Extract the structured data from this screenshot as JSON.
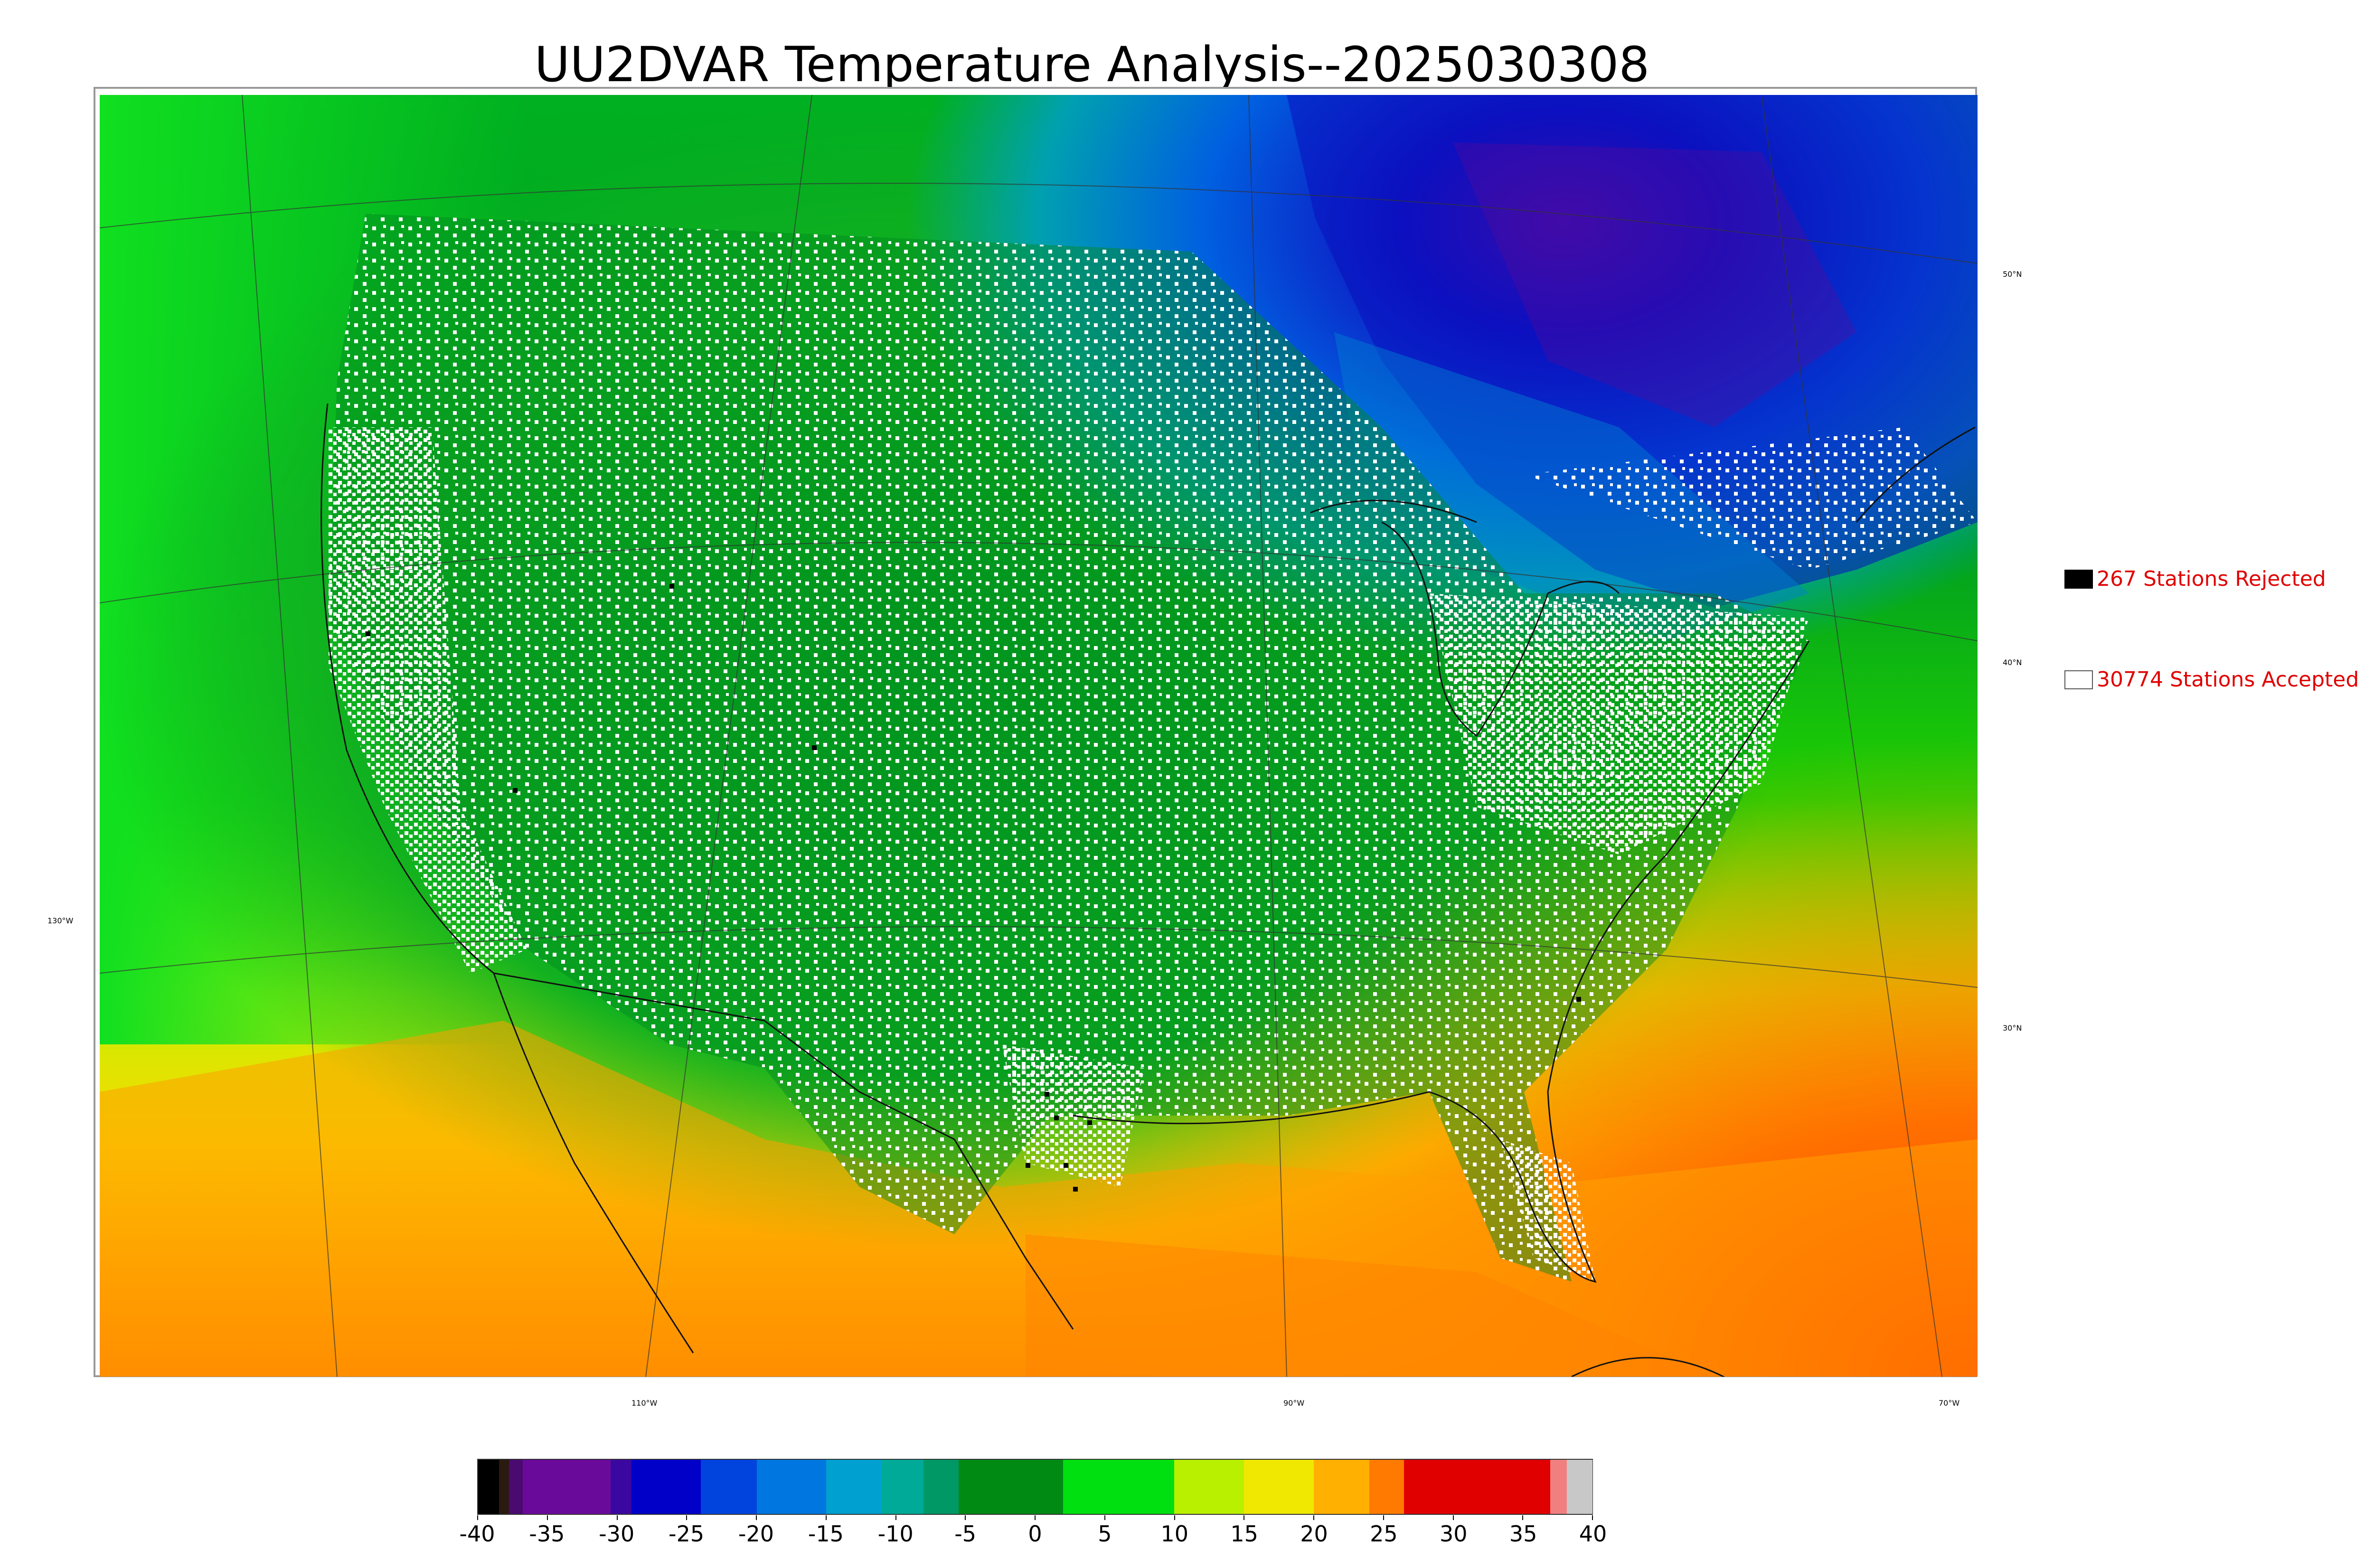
{
  "title": "UU2DVAR Temperature Analysis--2025030308",
  "map": {
    "lat_labels": [
      "50°N",
      "40°N",
      "30°N"
    ],
    "lon_labels": [
      "130°W",
      "110°W",
      "90°W",
      "70°W"
    ]
  },
  "legend": {
    "rejected_label": "267 Stations Rejected",
    "accepted_label": "30774 Stations Accepted"
  },
  "colorbar": {
    "ticks": [
      "-40",
      "-35",
      "-30",
      "-25",
      "-20",
      "-15",
      "-10",
      "-5",
      "0",
      "5",
      "10",
      "15",
      "20",
      "25",
      "30",
      "35",
      "40"
    ],
    "min": -40,
    "max": 40,
    "colors": [
      {
        "from": -40,
        "to": -38.5,
        "color": "#000000"
      },
      {
        "from": -38.5,
        "to": -37.8,
        "color": "#2a1a10"
      },
      {
        "from": -37.8,
        "to": -36.8,
        "color": "#4a0a70"
      },
      {
        "from": -36.8,
        "to": -30.5,
        "color": "#6a0a9a"
      },
      {
        "from": -30.5,
        "to": -29,
        "color": "#3a08a0"
      },
      {
        "from": -29,
        "to": -24,
        "color": "#0000c8"
      },
      {
        "from": -24,
        "to": -20,
        "color": "#0044dd"
      },
      {
        "from": -20,
        "to": -15,
        "color": "#0077e0"
      },
      {
        "from": -15,
        "to": -11,
        "color": "#00a0d0"
      },
      {
        "from": -11,
        "to": -8,
        "color": "#00aa99"
      },
      {
        "from": -8,
        "to": -5.5,
        "color": "#009966"
      },
      {
        "from": -5.5,
        "to": 2,
        "color": "#008a14"
      },
      {
        "from": 2,
        "to": 10,
        "color": "#00e010"
      },
      {
        "from": 10,
        "to": 15,
        "color": "#b8f000"
      },
      {
        "from": 15,
        "to": 20,
        "color": "#f0e800"
      },
      {
        "from": 20,
        "to": 24,
        "color": "#ffb000"
      },
      {
        "from": 24,
        "to": 26.5,
        "color": "#ff7a00"
      },
      {
        "from": 26.5,
        "to": 37,
        "color": "#e00000"
      },
      {
        "from": 37,
        "to": 38.2,
        "color": "#f08080"
      },
      {
        "from": 38.2,
        "to": 40,
        "color": "#c8c8c8"
      }
    ]
  }
}
